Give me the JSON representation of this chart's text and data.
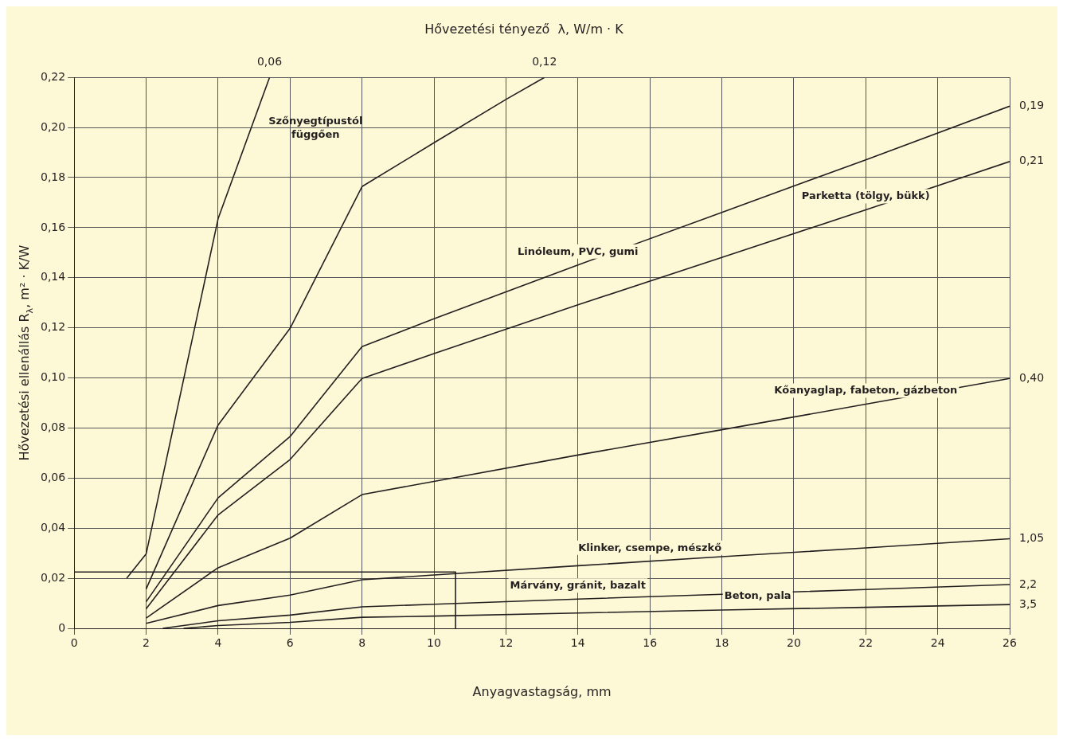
{
  "chart_data": {
    "type": "line",
    "title": "Hővezetési tényező  λ, W/m · K",
    "xlabel": "Anyagvastagság, mm",
    "ylabel": "Hővezetési ellenállás R$_{λ}$, m² · K/W",
    "xlim": [
      0,
      26
    ],
    "xticks": [
      0,
      2,
      4,
      6,
      8,
      10,
      12,
      14,
      16,
      18,
      20,
      22,
      24,
      26
    ],
    "ylim": [
      0,
      0.22
    ],
    "yticks": [
      {
        "value": 0,
        "label": "0"
      },
      {
        "value": 0.02,
        "label": "0,02"
      },
      {
        "value": 0.04,
        "label": "0,04"
      },
      {
        "value": 0.06,
        "label": "0,06"
      },
      {
        "value": 0.08,
        "label": "0,08"
      },
      {
        "value": 0.1,
        "label": "0,10"
      },
      {
        "value": 0.12,
        "label": "0,12"
      },
      {
        "value": 0.14,
        "label": "0,14"
      },
      {
        "value": 0.16,
        "label": "0,16"
      },
      {
        "value": 0.18,
        "label": "0,18"
      },
      {
        "value": 0.2,
        "label": "0,20"
      },
      {
        "value": 0.22,
        "label": "0,22"
      }
    ],
    "grid": true,
    "legend": false,
    "marker": "none",
    "line_style": "solid",
    "series": [
      {
        "color": "#231f20",
        "x": [
          1.46,
          2,
          4,
          5.43
        ],
        "values": [
          0.02,
          0.0297,
          0.1636,
          0.22
        ]
      },
      {
        "color": "#231f20",
        "x": [
          2,
          4,
          6,
          8,
          10,
          12,
          13.07
        ],
        "values": [
          0.0157,
          0.0812,
          0.1198,
          0.1764,
          0.1939,
          0.2112,
          0.22
        ]
      },
      {
        "color": "#231f20",
        "x": [
          2,
          4,
          6,
          8,
          10,
          14,
          18,
          22,
          26
        ],
        "values": [
          0.0106,
          0.0521,
          0.0766,
          0.1125,
          0.1236,
          0.1451,
          0.1661,
          0.1871,
          0.2085
        ]
      },
      {
        "color": "#231f20",
        "x": [
          2,
          4,
          6,
          8,
          10,
          14,
          18,
          22,
          26
        ],
        "values": [
          0.0078,
          0.0453,
          0.0674,
          0.0998,
          0.1097,
          0.1292,
          0.1481,
          0.1671,
          0.1864
        ]
      },
      {
        "color": "#231f20",
        "x": [
          2,
          4,
          6,
          8,
          10,
          14,
          18,
          22,
          26
        ],
        "values": [
          0.0041,
          0.0242,
          0.036,
          0.0534,
          0.0587,
          0.0692,
          0.0793,
          0.0895,
          0.0998
        ]
      },
      {
        "color": "#231f20",
        "x": [
          2,
          4,
          6,
          8,
          10,
          14,
          18,
          22,
          26
        ],
        "values": [
          0.002,
          0.0091,
          0.0133,
          0.0194,
          0.0213,
          0.025,
          0.0286,
          0.0321,
          0.0358
        ]
      },
      {
        "color": "#231f20",
        "x": [
          2.46,
          4,
          6,
          8,
          10,
          14,
          18,
          22,
          26
        ],
        "values": [
          0,
          0.003,
          0.0053,
          0.0086,
          0.0096,
          0.0117,
          0.0136,
          0.0155,
          0.0175
        ]
      },
      {
        "color": "#231f20",
        "x": [
          3.04,
          4,
          6,
          8,
          10,
          14,
          18,
          22,
          26
        ],
        "values": [
          0,
          0.0011,
          0.0024,
          0.0044,
          0.0049,
          0.0061,
          0.0073,
          0.0084,
          0.0095
        ]
      },
      {
        "color": "#231f20",
        "x": [
          0,
          10.6,
          10.6
        ],
        "values": [
          0.0225,
          0.0225,
          0
        ]
      }
    ],
    "annotations": [
      {
        "text": "0,06",
        "x": 5.43,
        "y": 0.22
      },
      {
        "text": "0,12",
        "x": 13.07,
        "y": 0.22
      },
      {
        "text": "0,19",
        "x": 26,
        "y": 0.2085
      },
      {
        "text": "0,21",
        "x": 26,
        "y": 0.1864
      },
      {
        "text": "0,40",
        "x": 26,
        "y": 0.0998
      },
      {
        "text": "1,05",
        "x": 26,
        "y": 0.0358
      },
      {
        "text": "2,2",
        "x": 26,
        "y": 0.0175
      },
      {
        "text": "3,5",
        "x": 26,
        "y": 0.0095
      },
      "Szőnyegtípustól függően",
      {
        "text": "Linóleum, PVC, gumi",
        "x": 14,
        "y": 0.1451
      },
      {
        "text": "Parketta (tölgy, bükk)",
        "x": 22,
        "y": 0.1671
      },
      {
        "text": "Kőanyaglap, fabeton, gázbeton",
        "x": 22,
        "y": 0.0895
      },
      {
        "text": "Márvány, gránit, bazalt",
        "x": 14,
        "y": 0.0117
      },
      {
        "text": "Klinker, csempe, mészkő",
        "x": 16,
        "y": 0.0268
      },
      {
        "text": "Beton, pala",
        "x": 19,
        "y": 0.0076
      }
    ]
  }
}
